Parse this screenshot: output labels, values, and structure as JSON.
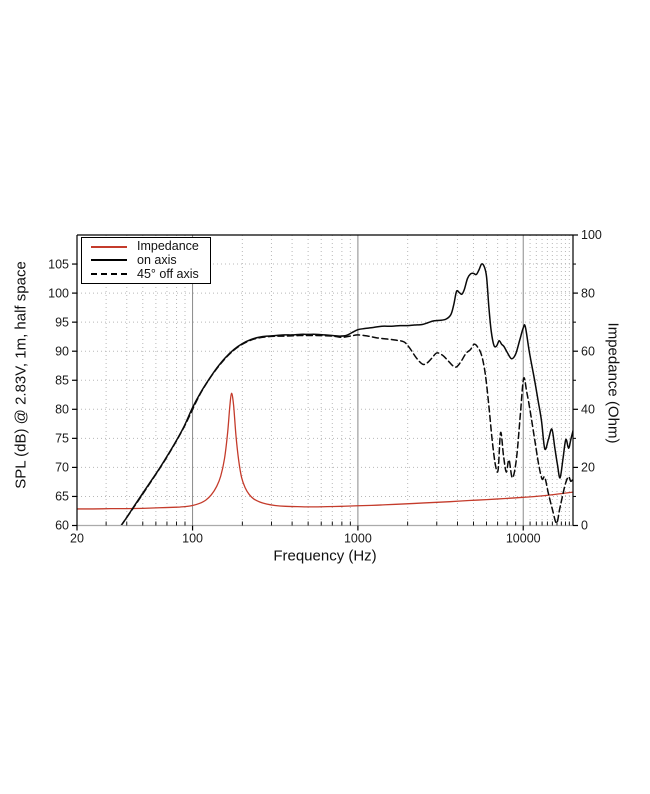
{
  "page": {
    "background_color": "#ffffff"
  },
  "chart_data": {
    "type": "line",
    "title": "",
    "x_axis": {
      "label": "Frequency (Hz)",
      "scale": "log",
      "min": 20,
      "max": 20000,
      "major_ticks": [
        20,
        100,
        1000,
        10000
      ],
      "major_tick_labels": [
        "20",
        "100",
        "1000",
        "10000"
      ]
    },
    "y_axis_left": {
      "label": "SPL (dB) @ 2.83V, 1m, half space",
      "min": 60,
      "max": 110,
      "tick_step": 5,
      "ticks": [
        60,
        65,
        70,
        75,
        80,
        85,
        90,
        95,
        100,
        105
      ],
      "tick_labels": [
        "60",
        "65",
        "70",
        "75",
        "80",
        "85",
        "90",
        "95",
        "100",
        "105"
      ]
    },
    "y_axis_right": {
      "label": "Impedance (Ohm)",
      "min": 0,
      "max": 100,
      "tick_step": 20,
      "minor_tick_step": 10,
      "ticks": [
        0,
        20,
        40,
        60,
        80,
        100
      ],
      "tick_labels": [
        "0",
        "20",
        "40",
        "60",
        "80",
        "100"
      ]
    },
    "grid": true,
    "legend_position": "top-left",
    "legend": {
      "items": [
        {
          "label": "Impedance",
          "color": "#c43b2b",
          "dash": "solid"
        },
        {
          "label": "on axis",
          "color": "#000000",
          "dash": "solid"
        },
        {
          "label": "45° off axis",
          "color": "#000000",
          "dash": "dashed"
        }
      ]
    },
    "colors": {
      "impedance_red": "#c43b2b",
      "curve_black": "#0a0a0a",
      "grid_minor": "#b8b8b8",
      "grid_major_vertical": "#8a8a8a",
      "frame": "#000000",
      "bottom_axis": "#aaaaaa",
      "text": "#1a1a1a"
    },
    "series": [
      {
        "name": "Impedance",
        "axis": "right",
        "unit": "Ohm",
        "color": "#c43b2b",
        "dash": "solid",
        "points": [
          [
            20,
            5.7
          ],
          [
            25,
            5.7
          ],
          [
            32,
            5.8
          ],
          [
            40,
            5.8
          ],
          [
            50,
            5.9
          ],
          [
            63,
            6.1
          ],
          [
            80,
            6.3
          ],
          [
            90,
            6.5
          ],
          [
            100,
            6.9
          ],
          [
            110,
            7.6
          ],
          [
            120,
            8.7
          ],
          [
            130,
            10.6
          ],
          [
            140,
            13.5
          ],
          [
            148,
            17
          ],
          [
            156,
            23
          ],
          [
            163,
            32
          ],
          [
            168,
            41
          ],
          [
            172,
            45.5
          ],
          [
            177,
            41.5
          ],
          [
            183,
            31
          ],
          [
            190,
            22.5
          ],
          [
            198,
            16.5
          ],
          [
            208,
            13
          ],
          [
            220,
            10.7
          ],
          [
            235,
            9.1
          ],
          [
            255,
            8.1
          ],
          [
            280,
            7.4
          ],
          [
            315,
            6.9
          ],
          [
            365,
            6.6
          ],
          [
            430,
            6.5
          ],
          [
            520,
            6.4
          ],
          [
            650,
            6.5
          ],
          [
            800,
            6.6
          ],
          [
            1000,
            6.8
          ],
          [
            1300,
            7.0
          ],
          [
            1700,
            7.3
          ],
          [
            2200,
            7.6
          ],
          [
            2800,
            7.9
          ],
          [
            3600,
            8.2
          ],
          [
            4700,
            8.6
          ],
          [
            6000,
            8.9
          ],
          [
            7800,
            9.3
          ],
          [
            10000,
            9.7
          ],
          [
            13000,
            10.2
          ],
          [
            16000,
            10.8
          ],
          [
            20000,
            11.5
          ]
        ]
      },
      {
        "name": "on axis",
        "axis": "left",
        "unit": "dB",
        "color": "#0a0a0a",
        "dash": "solid",
        "points": [
          [
            37,
            60
          ],
          [
            40,
            61.4
          ],
          [
            44,
            63.2
          ],
          [
            49,
            65.2
          ],
          [
            55,
            67.3
          ],
          [
            62,
            69.5
          ],
          [
            70,
            71.9
          ],
          [
            79,
            74.4
          ],
          [
            89,
            77.1
          ],
          [
            100,
            80.3
          ],
          [
            112,
            82.9
          ],
          [
            126,
            85.2
          ],
          [
            141,
            87.2
          ],
          [
            158,
            88.9
          ],
          [
            178,
            90.3
          ],
          [
            200,
            91.3
          ],
          [
            225,
            92
          ],
          [
            252,
            92.4
          ],
          [
            285,
            92.6
          ],
          [
            320,
            92.7
          ],
          [
            360,
            92.8
          ],
          [
            400,
            92.8
          ],
          [
            450,
            92.9
          ],
          [
            500,
            92.9
          ],
          [
            560,
            92.9
          ],
          [
            630,
            92.8
          ],
          [
            700,
            92.7
          ],
          [
            780,
            92.6
          ],
          [
            850,
            92.7
          ],
          [
            920,
            93.2
          ],
          [
            1000,
            93.7
          ],
          [
            1100,
            93.9
          ],
          [
            1250,
            94.1
          ],
          [
            1400,
            94.3
          ],
          [
            1600,
            94.3
          ],
          [
            1800,
            94.4
          ],
          [
            2000,
            94.4
          ],
          [
            2200,
            94.5
          ],
          [
            2450,
            94.6
          ],
          [
            2650,
            94.9
          ],
          [
            2850,
            95.2
          ],
          [
            3100,
            95.3
          ],
          [
            3400,
            95.5
          ],
          [
            3650,
            96.3
          ],
          [
            3800,
            98
          ],
          [
            3950,
            100.3
          ],
          [
            4100,
            100.1
          ],
          [
            4250,
            99.8
          ],
          [
            4400,
            100.6
          ],
          [
            4600,
            102.5
          ],
          [
            4800,
            103.3
          ],
          [
            5000,
            103.4
          ],
          [
            5200,
            103.2
          ],
          [
            5400,
            104
          ],
          [
            5600,
            105
          ],
          [
            5800,
            104.6
          ],
          [
            6000,
            102.8
          ],
          [
            6200,
            97.5
          ],
          [
            6400,
            93.5
          ],
          [
            6650,
            91
          ],
          [
            6900,
            90.9
          ],
          [
            7150,
            91.8
          ],
          [
            7400,
            91.2
          ],
          [
            7650,
            90.8
          ],
          [
            8000,
            89.8
          ],
          [
            8500,
            88.7
          ],
          [
            9000,
            89.5
          ],
          [
            9500,
            91.8
          ],
          [
            10000,
            94
          ],
          [
            10300,
            94.2
          ],
          [
            10900,
            89.8
          ],
          [
            11700,
            85.1
          ],
          [
            12300,
            81.5
          ],
          [
            12900,
            78
          ],
          [
            13500,
            73.2
          ],
          [
            14200,
            74.8
          ],
          [
            14900,
            76.6
          ],
          [
            15500,
            73.5
          ],
          [
            16100,
            70.5
          ],
          [
            16700,
            68.2
          ],
          [
            17400,
            71.5
          ],
          [
            18100,
            74.8
          ],
          [
            18800,
            73.3
          ],
          [
            19400,
            74.8
          ],
          [
            20000,
            76.3
          ]
        ]
      },
      {
        "name": "45° off axis",
        "axis": "left",
        "unit": "dB",
        "color": "#0a0a0a",
        "dash": "dashed",
        "points": [
          [
            37,
            60
          ],
          [
            44,
            63.1
          ],
          [
            55,
            67.2
          ],
          [
            70,
            71.8
          ],
          [
            89,
            77
          ],
          [
            112,
            82.8
          ],
          [
            141,
            87.1
          ],
          [
            178,
            90.2
          ],
          [
            225,
            91.9
          ],
          [
            285,
            92.5
          ],
          [
            360,
            92.6
          ],
          [
            450,
            92.7
          ],
          [
            560,
            92.7
          ],
          [
            700,
            92.6
          ],
          [
            800,
            92.4
          ],
          [
            900,
            92.6
          ],
          [
            1000,
            92.8
          ],
          [
            1150,
            92.6
          ],
          [
            1300,
            92.3
          ],
          [
            1500,
            92.1
          ],
          [
            1700,
            91.9
          ],
          [
            1900,
            91.6
          ],
          [
            2050,
            90.6
          ],
          [
            2250,
            88.9
          ],
          [
            2450,
            87.8
          ],
          [
            2600,
            87.9
          ],
          [
            2800,
            88.8
          ],
          [
            3000,
            89.7
          ],
          [
            3250,
            89.3
          ],
          [
            3500,
            88.4
          ],
          [
            3750,
            87.5
          ],
          [
            3950,
            87.3
          ],
          [
            4200,
            88.2
          ],
          [
            4500,
            89.6
          ],
          [
            4800,
            90.3
          ],
          [
            5050,
            91.2
          ],
          [
            5300,
            90.7
          ],
          [
            5600,
            89.3
          ],
          [
            5900,
            86
          ],
          [
            6200,
            80.5
          ],
          [
            6500,
            74.5
          ],
          [
            6800,
            70.3
          ],
          [
            7050,
            69.6
          ],
          [
            7300,
            76
          ],
          [
            7600,
            72
          ],
          [
            7900,
            69.2
          ],
          [
            8200,
            71.3
          ],
          [
            8600,
            68.2
          ],
          [
            9100,
            71.5
          ],
          [
            9600,
            79
          ],
          [
            10050,
            85.3
          ],
          [
            10500,
            83
          ],
          [
            11000,
            79.8
          ],
          [
            11700,
            75
          ],
          [
            12400,
            70.5
          ],
          [
            13000,
            68
          ],
          [
            13500,
            68.3
          ],
          [
            14200,
            65.5
          ],
          [
            15000,
            62.8
          ],
          [
            15900,
            60.4
          ],
          [
            16600,
            62.8
          ],
          [
            17200,
            64.8
          ],
          [
            18000,
            67.2
          ],
          [
            18800,
            68.4
          ],
          [
            19400,
            67.6
          ],
          [
            20000,
            68
          ]
        ]
      }
    ]
  }
}
